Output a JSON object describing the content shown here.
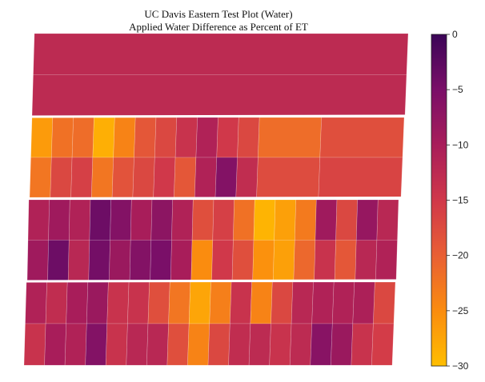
{
  "chart_data": {
    "type": "heatmap",
    "title": "UC Davis Eastern Test Plot (Water)",
    "subtitle": "Applied Water Difference as Percent of ET",
    "xlabel": "",
    "ylabel": "",
    "grid": false,
    "colorbar": {
      "min": -30,
      "max": 0,
      "ticks": [
        0,
        -5,
        -10,
        -15,
        -20,
        -25,
        -30
      ],
      "tick_labels": [
        "0",
        "−5",
        "−10",
        "−15",
        "−20",
        "−25",
        "−30"
      ],
      "colormap": "inferno-range",
      "colors": [
        "#ffbe00",
        "#fa8c0f",
        "#e95f34",
        "#d0384a",
        "#a81d5a",
        "#7a0f68",
        "#3b0557"
      ]
    },
    "bands": [
      {
        "rows": [
          {
            "cells": [
              {
                "span": 1,
                "value": -12.5
              }
            ]
          },
          {
            "cells": [
              {
                "span": 1,
                "value": -12.5
              }
            ]
          }
        ]
      },
      {
        "rows": [
          {
            "cells": [
              {
                "span": 1,
                "value": -26.5
              },
              {
                "span": 1,
                "value": -22
              },
              {
                "span": 1,
                "value": -21.5
              },
              {
                "span": 1,
                "value": -28.5
              },
              {
                "span": 1,
                "value": -24
              },
              {
                "span": 1,
                "value": -19
              },
              {
                "span": 1,
                "value": -17
              },
              {
                "span": 1,
                "value": -14
              },
              {
                "span": 1,
                "value": -11
              },
              {
                "span": 1,
                "value": -15
              },
              {
                "span": 1,
                "value": -17
              },
              {
                "span": 3,
                "value": -21.5
              },
              {
                "span": 4,
                "value": -18
              }
            ]
          },
          {
            "cells": [
              {
                "span": 1,
                "value": -22.5
              },
              {
                "span": 1,
                "value": -17
              },
              {
                "span": 1,
                "value": -16
              },
              {
                "span": 1,
                "value": -22.5
              },
              {
                "span": 1,
                "value": -18.5
              },
              {
                "span": 1,
                "value": -17
              },
              {
                "span": 1,
                "value": -15
              },
              {
                "span": 1,
                "value": -19
              },
              {
                "span": 1,
                "value": -11
              },
              {
                "span": 1,
                "value": -6
              },
              {
                "span": 1,
                "value": -13
              },
              {
                "span": 3,
                "value": -17.5
              },
              {
                "span": 4,
                "value": -16.5
              }
            ]
          }
        ]
      },
      {
        "rows": [
          {
            "cells": [
              {
                "span": 1,
                "value": -11
              },
              {
                "span": 1,
                "value": -9
              },
              {
                "span": 1,
                "value": -11
              },
              {
                "span": 1,
                "value": -4
              },
              {
                "span": 1,
                "value": -6
              },
              {
                "span": 1,
                "value": -10
              },
              {
                "span": 1,
                "value": -7
              },
              {
                "span": 1,
                "value": -11
              },
              {
                "span": 1,
                "value": -18
              },
              {
                "span": 1,
                "value": -16
              },
              {
                "span": 1,
                "value": -22
              },
              {
                "span": 1,
                "value": -29
              },
              {
                "span": 1,
                "value": -27
              },
              {
                "span": 1,
                "value": -23
              },
              {
                "span": 1,
                "value": -9
              },
              {
                "span": 1,
                "value": -17
              },
              {
                "span": 1,
                "value": -8
              },
              {
                "span": 1,
                "value": -12
              }
            ]
          },
          {
            "cells": [
              {
                "span": 1,
                "value": -9
              },
              {
                "span": 1,
                "value": -4
              },
              {
                "span": 1,
                "value": -12
              },
              {
                "span": 1,
                "value": -4.5
              },
              {
                "span": 1,
                "value": -8.5
              },
              {
                "span": 1,
                "value": -6
              },
              {
                "span": 1,
                "value": -5
              },
              {
                "span": 1,
                "value": -10
              },
              {
                "span": 1,
                "value": -25
              },
              {
                "span": 1,
                "value": -15
              },
              {
                "span": 1,
                "value": -18
              },
              {
                "span": 1,
                "value": -25.5
              },
              {
                "span": 1,
                "value": -27
              },
              {
                "span": 1,
                "value": -21
              },
              {
                "span": 1,
                "value": -14
              },
              {
                "span": 1,
                "value": -19
              },
              {
                "span": 1,
                "value": -12
              },
              {
                "span": 1,
                "value": -11
              }
            ]
          }
        ]
      },
      {
        "rows": [
          {
            "cells": [
              {
                "span": 1,
                "value": -11
              },
              {
                "span": 1,
                "value": -13
              },
              {
                "span": 1,
                "value": -10
              },
              {
                "span": 1,
                "value": -8.5
              },
              {
                "span": 1,
                "value": -14
              },
              {
                "span": 1,
                "value": -14
              },
              {
                "span": 1,
                "value": -18
              },
              {
                "span": 1,
                "value": -22.5
              },
              {
                "span": 1,
                "value": -27.5
              },
              {
                "span": 1,
                "value": -23.5
              },
              {
                "span": 1,
                "value": -14
              },
              {
                "span": 1,
                "value": -24
              },
              {
                "span": 1,
                "value": -17
              },
              {
                "span": 1,
                "value": -12
              },
              {
                "span": 1,
                "value": -11
              },
              {
                "span": 1,
                "value": -11
              },
              {
                "span": 1,
                "value": -10.5
              },
              {
                "span": 1,
                "value": -17
              }
            ]
          },
          {
            "cells": [
              {
                "span": 1,
                "value": -14
              },
              {
                "span": 1,
                "value": -10
              },
              {
                "span": 1,
                "value": -11
              },
              {
                "span": 1,
                "value": -6
              },
              {
                "span": 1,
                "value": -14
              },
              {
                "span": 1,
                "value": -12
              },
              {
                "span": 1,
                "value": -12
              },
              {
                "span": 1,
                "value": -18
              },
              {
                "span": 1,
                "value": -24
              },
              {
                "span": 1,
                "value": -17
              },
              {
                "span": 1,
                "value": -13
              },
              {
                "span": 1,
                "value": -12.5
              },
              {
                "span": 1,
                "value": -14
              },
              {
                "span": 1,
                "value": -12.5
              },
              {
                "span": 1,
                "value": -6.5
              },
              {
                "span": 1,
                "value": -8.5
              },
              {
                "span": 1,
                "value": -14
              },
              {
                "span": 1,
                "value": -15.5
              }
            ]
          }
        ]
      }
    ]
  }
}
